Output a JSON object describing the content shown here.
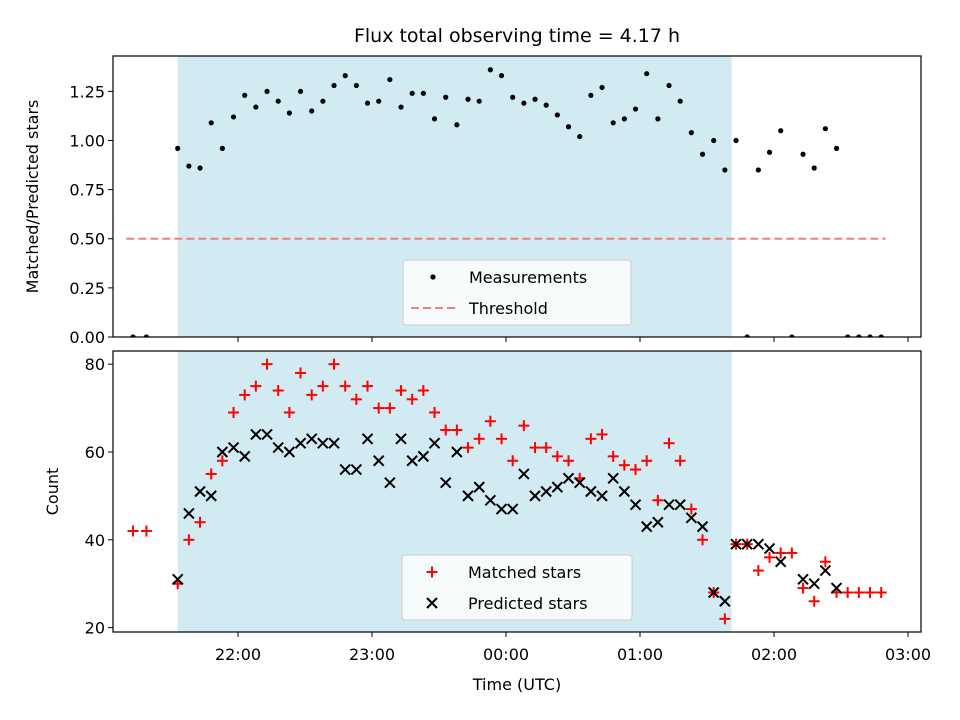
{
  "chart_data": {
    "type": "scatter",
    "title": "Flux total observing time = 4.17 h",
    "xlabel": "Time (UTC)",
    "x_tick_labels": [
      "22:00",
      "23:00",
      "00:00",
      "01:00",
      "02:00",
      "03:00"
    ],
    "shaded_region": {
      "start": "21:33",
      "end": "01:41",
      "color": "#add8e6"
    },
    "colors": {
      "measurement": "#000000",
      "threshold": "#f08080",
      "matched": "#ff0000",
      "predicted": "#000000",
      "shade": "#add8e6"
    },
    "panels": [
      {
        "ylabel": "Matched/Predicted stars",
        "ylim": [
          0,
          1.43
        ],
        "y_ticks": [
          "0.00",
          "0.25",
          "0.50",
          "0.75",
          "1.00",
          "1.25"
        ],
        "legend": {
          "position": "lower center",
          "entries": [
            "Measurements",
            "Threshold"
          ]
        },
        "threshold": {
          "name": "Threshold",
          "value": 0.5,
          "x_start": "21:10",
          "x_end": "02:50"
        },
        "series": [
          {
            "name": "Measurements",
            "marker": "dot",
            "x": [
              "21:13",
              "21:19",
              "21:33",
              "21:38",
              "21:43",
              "21:48",
              "21:53",
              "21:58",
              "22:03",
              "22:08",
              "22:13",
              "22:18",
              "22:23",
              "22:28",
              "22:33",
              "22:38",
              "22:43",
              "22:48",
              "22:53",
              "22:58",
              "23:03",
              "23:08",
              "23:13",
              "23:18",
              "23:23",
              "23:28",
              "23:33",
              "23:38",
              "23:43",
              "23:48",
              "23:53",
              "23:58",
              "00:03",
              "00:08",
              "00:13",
              "00:18",
              "00:23",
              "00:28",
              "00:33",
              "00:38",
              "00:43",
              "00:48",
              "00:53",
              "00:58",
              "01:03",
              "01:08",
              "01:13",
              "01:18",
              "01:23",
              "01:28",
              "01:33",
              "01:38",
              "01:43",
              "01:48",
              "01:53",
              "01:58",
              "02:03",
              "02:08",
              "02:13",
              "02:18",
              "02:23",
              "02:28",
              "02:33",
              "02:38",
              "02:43",
              "02:48"
            ],
            "y": [
              0.0,
              0.0,
              0.96,
              0.87,
              0.86,
              1.09,
              0.96,
              1.12,
              1.23,
              1.17,
              1.25,
              1.2,
              1.14,
              1.25,
              1.15,
              1.2,
              1.28,
              1.33,
              1.28,
              1.19,
              1.2,
              1.31,
              1.17,
              1.24,
              1.24,
              1.11,
              1.22,
              1.08,
              1.21,
              1.2,
              1.36,
              1.33,
              1.22,
              1.19,
              1.21,
              1.18,
              1.13,
              1.07,
              1.02,
              1.23,
              1.27,
              1.09,
              1.11,
              1.16,
              1.34,
              1.11,
              1.28,
              1.2,
              1.04,
              0.93,
              1.0,
              0.85,
              1.0,
              0.0,
              0.85,
              0.94,
              1.05,
              0.0,
              0.93,
              0.86,
              1.06,
              0.96,
              0.0,
              0.0,
              0.0,
              0.0
            ]
          }
        ]
      },
      {
        "ylabel": "Count",
        "ylim": [
          19,
          83
        ],
        "y_ticks": [
          "20",
          "40",
          "60",
          "80"
        ],
        "legend": {
          "position": "lower center",
          "entries": [
            "Matched stars",
            "Predicted stars"
          ]
        },
        "series": [
          {
            "name": "Matched stars",
            "marker": "plus",
            "x": [
              "21:13",
              "21:19",
              "21:33",
              "21:38",
              "21:43",
              "21:48",
              "21:53",
              "21:58",
              "22:03",
              "22:08",
              "22:13",
              "22:18",
              "22:23",
              "22:28",
              "22:33",
              "22:38",
              "22:43",
              "22:48",
              "22:53",
              "22:58",
              "23:03",
              "23:08",
              "23:13",
              "23:18",
              "23:23",
              "23:28",
              "23:33",
              "23:38",
              "23:43",
              "23:48",
              "23:53",
              "23:58",
              "00:03",
              "00:08",
              "00:13",
              "00:18",
              "00:23",
              "00:28",
              "00:33",
              "00:38",
              "00:43",
              "00:48",
              "00:53",
              "00:58",
              "01:03",
              "01:08",
              "01:13",
              "01:18",
              "01:23",
              "01:28",
              "01:33",
              "01:38",
              "01:43",
              "01:48",
              "01:53",
              "01:58",
              "02:03",
              "02:08",
              "02:13",
              "02:18",
              "02:23",
              "02:28",
              "02:33",
              "02:38",
              "02:43",
              "02:48"
            ],
            "y": [
              42,
              42,
              30,
              40,
              44,
              55,
              58,
              69,
              73,
              75,
              80,
              74,
              69,
              78,
              73,
              75,
              80,
              75,
              72,
              75,
              70,
              70,
              74,
              72,
              74,
              69,
              65,
              65,
              61,
              63,
              67,
              63,
              58,
              66,
              61,
              61,
              59,
              58,
              54,
              63,
              64,
              59,
              57,
              56,
              58,
              49,
              62,
              58,
              47,
              40,
              28,
              22,
              39,
              39,
              33,
              36,
              37,
              37,
              29,
              26,
              35,
              28,
              28,
              28,
              28,
              28
            ]
          },
          {
            "name": "Predicted stars",
            "marker": "x",
            "x": [
              "21:33",
              "21:38",
              "21:43",
              "21:48",
              "21:53",
              "21:58",
              "22:03",
              "22:08",
              "22:13",
              "22:18",
              "22:23",
              "22:28",
              "22:33",
              "22:38",
              "22:43",
              "22:48",
              "22:53",
              "22:58",
              "23:03",
              "23:08",
              "23:13",
              "23:18",
              "23:23",
              "23:28",
              "23:33",
              "23:38",
              "23:43",
              "23:48",
              "23:53",
              "23:58",
              "00:03",
              "00:08",
              "00:13",
              "00:18",
              "00:23",
              "00:28",
              "00:33",
              "00:38",
              "00:43",
              "00:48",
              "00:53",
              "00:58",
              "01:03",
              "01:08",
              "01:13",
              "01:18",
              "01:23",
              "01:28",
              "01:33",
              "01:38",
              "01:43",
              "01:48",
              "01:53",
              "01:58",
              "02:03",
              "02:08",
              "02:13",
              "02:18",
              "02:23",
              "02:28"
            ],
            "y": [
              31,
              46,
              51,
              50,
              60,
              61,
              59,
              64,
              64,
              61,
              60,
              62,
              63,
              62,
              62,
              56,
              56,
              63,
              58,
              53,
              63,
              58,
              59,
              62,
              53,
              60,
              50,
              52,
              49,
              47,
              47,
              55,
              50,
              51,
              52,
              54,
              53,
              51,
              50,
              54,
              51,
              48,
              43,
              44,
              48,
              48,
              45,
              43,
              28,
              26,
              39,
              39,
              39,
              38,
              35,
              null,
              31,
              30,
              33,
              29
            ]
          }
        ]
      }
    ]
  }
}
